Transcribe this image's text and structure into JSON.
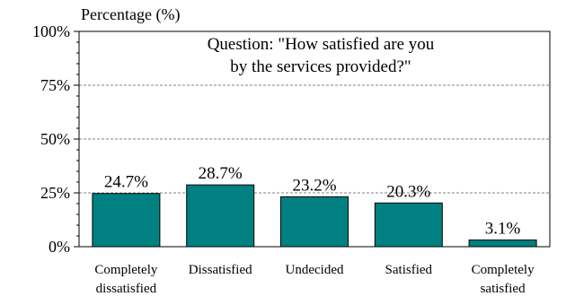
{
  "chart_data": {
    "type": "bar",
    "ylabel": "Percentage (%)",
    "ylim": [
      0,
      100
    ],
    "yticks": [
      0,
      25,
      50,
      75,
      100
    ],
    "ytick_labels": [
      "0%",
      "25%",
      "50%",
      "75%",
      "100%"
    ],
    "minor_tick_step": 5,
    "grid": true,
    "annotation": [
      "Question: \"How satisfied are you",
      "by the services provided?\""
    ],
    "categories": [
      [
        "Completely",
        "dissatisfied"
      ],
      [
        "Dissatisfied"
      ],
      [
        "Undecided"
      ],
      [
        "Satisfied"
      ],
      [
        "Completely",
        "satisfied"
      ]
    ],
    "values": [
      24.7,
      28.7,
      23.2,
      20.3,
      3.1
    ],
    "value_labels": [
      "24.7%",
      "28.7%",
      "23.2%",
      "20.3%",
      "3.1%"
    ],
    "colors": {
      "bar": "#008080",
      "grid": "#808080",
      "axis": "#000000"
    }
  }
}
